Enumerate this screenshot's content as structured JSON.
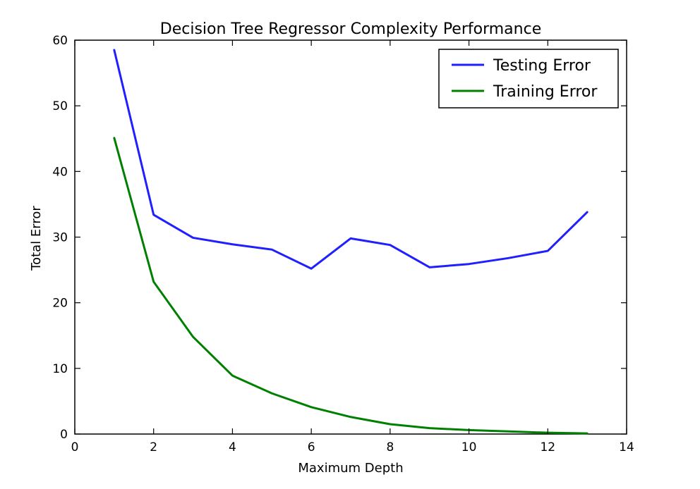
{
  "chart_data": {
    "type": "line",
    "title": "Decision Tree Regressor Complexity Performance",
    "xlabel": "Maximum Depth",
    "ylabel": "Total Error",
    "xlim": [
      0,
      14
    ],
    "ylim": [
      0,
      60
    ],
    "xticks": [
      0,
      2,
      4,
      6,
      8,
      10,
      12,
      14
    ],
    "yticks": [
      0,
      10,
      20,
      30,
      40,
      50,
      60
    ],
    "grid": false,
    "legend_position": "top-right",
    "x": [
      1,
      2,
      3,
      4,
      5,
      6,
      7,
      8,
      9,
      10,
      11,
      12,
      13
    ],
    "series": [
      {
        "name": "Testing Error",
        "color": "#1f1fff",
        "values": [
          58.5,
          33.4,
          29.9,
          28.9,
          28.1,
          25.2,
          29.8,
          28.8,
          25.4,
          25.9,
          26.8,
          27.9,
          33.8
        ]
      },
      {
        "name": "Training Error",
        "color": "#008000",
        "values": [
          45.1,
          23.2,
          14.8,
          8.9,
          6.2,
          4.1,
          2.6,
          1.5,
          0.9,
          0.6,
          0.4,
          0.2,
          0.1
        ]
      }
    ]
  }
}
